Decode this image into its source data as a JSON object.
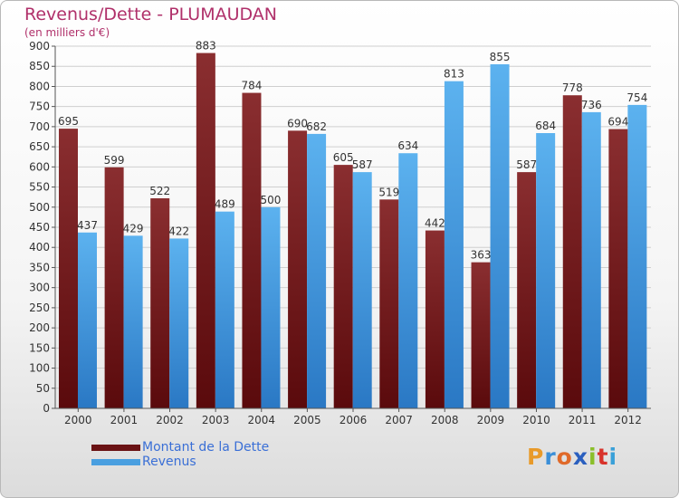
{
  "chart_data": {
    "type": "bar",
    "title": "Revenus/Dette - PLUMAUDAN",
    "subtitle": "(en milliers d'€)",
    "categories": [
      "2000",
      "2001",
      "2002",
      "2003",
      "2004",
      "2005",
      "2006",
      "2007",
      "2008",
      "2009",
      "2010",
      "2011",
      "2012"
    ],
    "series": [
      {
        "name": "Montant de la Dette",
        "color": "#7a1e20",
        "values": [
          695,
          599,
          522,
          883,
          784,
          690,
          605,
          519,
          442,
          363,
          587,
          778,
          694
        ]
      },
      {
        "name": "Revenus",
        "color": "#4a9fe0",
        "values": [
          437,
          429,
          422,
          489,
          500,
          682,
          587,
          634,
          813,
          855,
          684,
          736,
          754
        ]
      }
    ],
    "ylim": [
      0,
      900
    ],
    "yticks": [
      0,
      50,
      100,
      150,
      200,
      250,
      300,
      350,
      400,
      450,
      500,
      550,
      600,
      650,
      700,
      750,
      800,
      850,
      900
    ],
    "grid": true,
    "legend_position": "bottom-left"
  },
  "legend": {
    "items": [
      {
        "label": "Montant de la Dette",
        "color": "#7a1e20"
      },
      {
        "label": "Revenus",
        "color": "#4a9fe0"
      }
    ]
  },
  "logo": {
    "text": "Proxiti",
    "letter_colors": [
      "#e89a2a",
      "#3a8fd8",
      "#e06a2a",
      "#2a5fbf",
      "#8abf2a",
      "#d8322a",
      "#3aa0d8"
    ]
  }
}
